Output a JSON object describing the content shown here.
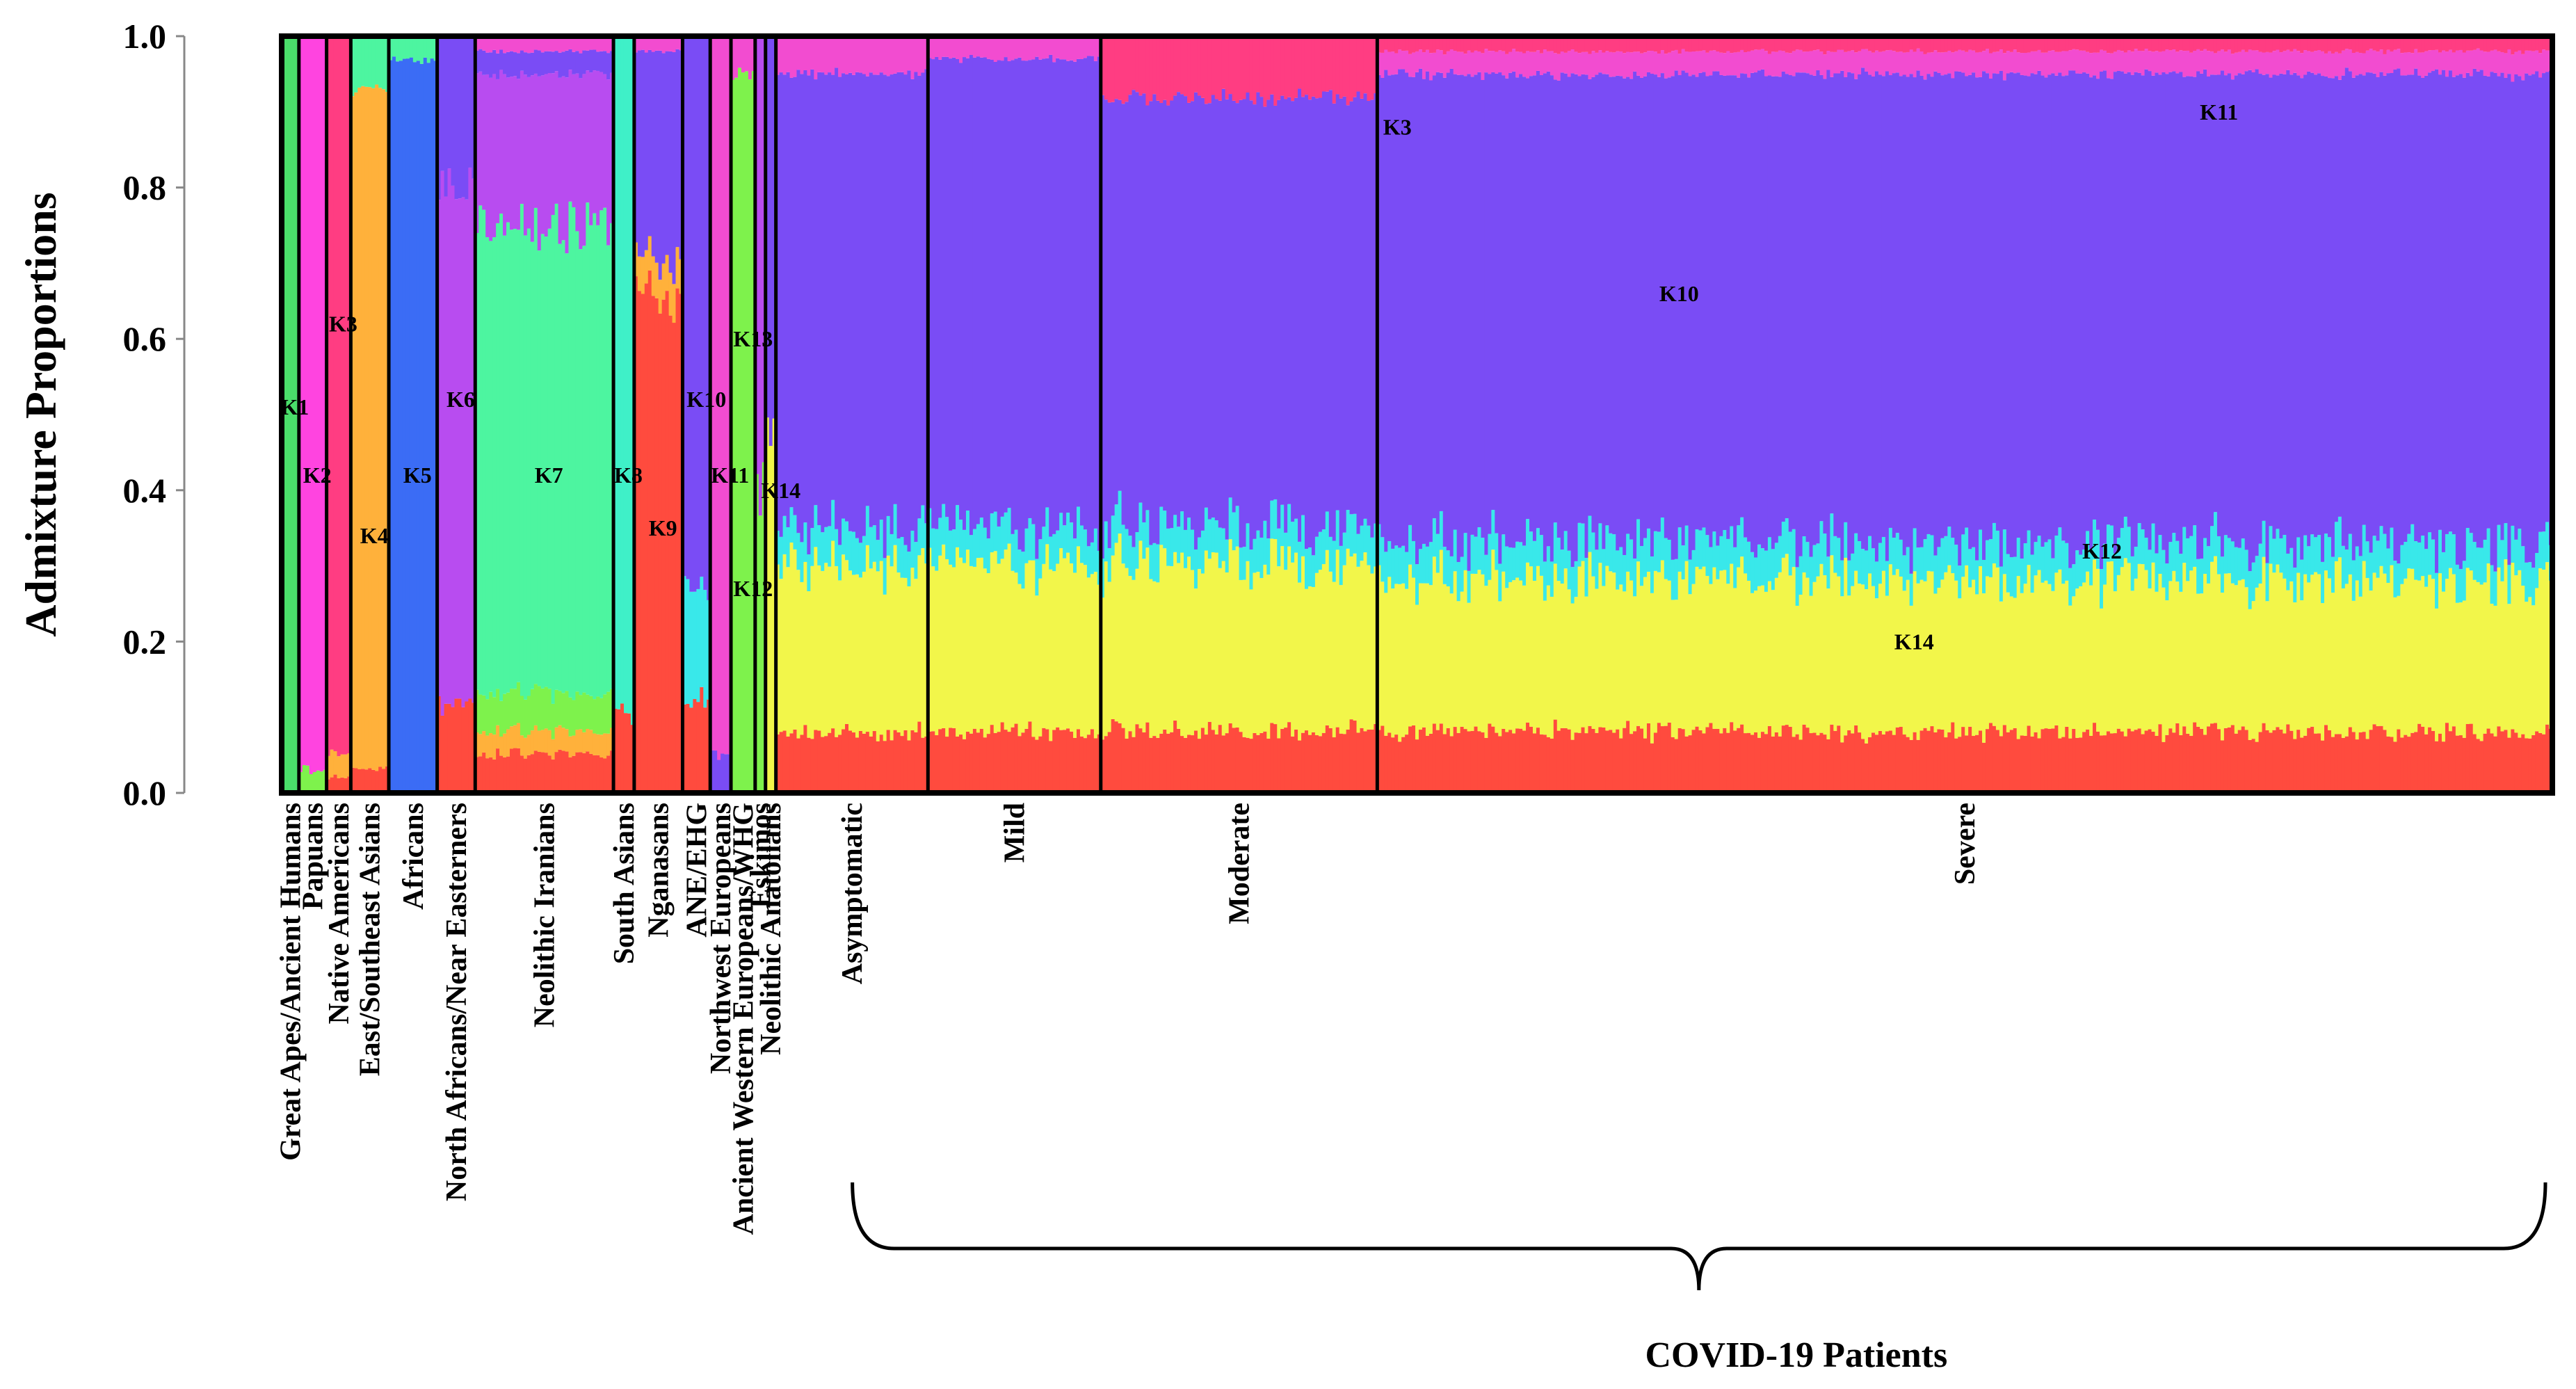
{
  "chart_data": {
    "type": "stacked-bar",
    "ylabel": "Admixture Proportions",
    "ylim": [
      0.0,
      1.0
    ],
    "yticks": [
      "0.0",
      "0.2",
      "0.4",
      "0.6",
      "0.8",
      "1.0"
    ],
    "components": [
      {
        "name": "K1",
        "color": "#4ade6a"
      },
      {
        "name": "K2",
        "color": "#ff44e0"
      },
      {
        "name": "K3",
        "color": "#ff3d82"
      },
      {
        "name": "K4",
        "color": "#ffb13b"
      },
      {
        "name": "K5",
        "color": "#3b6cf5"
      },
      {
        "name": "K6",
        "color": "#b84cf0"
      },
      {
        "name": "K7",
        "color": "#4df5a0"
      },
      {
        "name": "K8",
        "color": "#3ff0c8"
      },
      {
        "name": "K9",
        "color": "#ff4b3e"
      },
      {
        "name": "K10",
        "color": "#7a4cf5"
      },
      {
        "name": "K11",
        "color": "#f24cd0"
      },
      {
        "name": "K12",
        "color": "#39e8ea"
      },
      {
        "name": "K13",
        "color": "#7ef24c"
      },
      {
        "name": "K14",
        "color": "#f2f64a"
      }
    ],
    "groups": [
      {
        "name": "Great Apes/Ancient Humans",
        "n": 5,
        "composition": {
          "K1": 1.0
        }
      },
      {
        "name": "Papuans",
        "n": 8,
        "composition": {
          "K2": 0.97,
          "K13": 0.03
        }
      },
      {
        "name": "Native Americans",
        "n": 7,
        "composition": {
          "K3": 0.95,
          "K4": 0.03,
          "K9": 0.02
        }
      },
      {
        "name": "East/Southeast Asians",
        "n": 11,
        "composition": {
          "K4": 0.9,
          "K7": 0.07,
          "K9": 0.03
        }
      },
      {
        "name": "Africans",
        "n": 14,
        "composition": {
          "K5": 0.97,
          "K7": 0.03
        }
      },
      {
        "name": "North Africans/Near Easterners",
        "n": 11,
        "composition": {
          "K9": 0.12,
          "K6": 0.68,
          "K10": 0.2
        }
      },
      {
        "name": "Neolithic Iranians",
        "n": 40,
        "composition": {
          "K9": 0.05,
          "K4": 0.03,
          "K13": 0.05,
          "K7": 0.62,
          "K6": 0.2,
          "K10": 0.03,
          "K11": 0.02
        }
      },
      {
        "name": "South Asians",
        "n": 6,
        "composition": {
          "K9": 0.1,
          "K8": 0.9
        }
      },
      {
        "name": "Nganasans",
        "n": 14,
        "composition": {
          "K9": 0.65,
          "K4": 0.05,
          "K10": 0.28,
          "K11": 0.02
        }
      },
      {
        "name": "ANE/EHG",
        "n": 8,
        "composition": {
          "K9": 0.12,
          "K12": 0.15,
          "K10": 0.73
        }
      },
      {
        "name": "Northwest Europeans",
        "n": 6,
        "composition": {
          "K11": 0.95,
          "K10": 0.05
        }
      },
      {
        "name": "Ancient Western Europeans/WHG",
        "n": 7,
        "composition": {
          "K13": 0.95,
          "K11": 0.05
        }
      },
      {
        "name": "Eskimos",
        "n": 3,
        "composition": {
          "K6": 0.6,
          "K13": 0.4
        }
      },
      {
        "name": "Neolithic Anatolians",
        "n": 3,
        "composition": {
          "K14": 0.5,
          "K10": 0.5
        }
      },
      {
        "name": "Asymptomatic",
        "n": 44,
        "composition": {
          "K9": 0.08,
          "K14": 0.22,
          "K12": 0.05,
          "K10": 0.6,
          "K11": 0.05
        }
      },
      {
        "name": "Mild",
        "n": 50,
        "composition": {
          "K9": 0.08,
          "K14": 0.22,
          "K12": 0.05,
          "K10": 0.62,
          "K11": 0.03
        }
      },
      {
        "name": "Moderate",
        "n": 80,
        "composition": {
          "K9": 0.08,
          "K14": 0.22,
          "K12": 0.05,
          "K10": 0.57,
          "K3": 0.08
        }
      },
      {
        "name": "Severe",
        "n": 340,
        "composition": {
          "K9": 0.08,
          "K14": 0.2,
          "K12": 0.05,
          "K10": 0.62,
          "K3": 0.02,
          "K11": 0.03
        }
      }
    ],
    "component_labels": [
      {
        "text": "K1",
        "group": "Great Apes/Ancient Humans",
        "y": 0.51
      },
      {
        "text": "K2",
        "group": "Papuans",
        "y": 0.42
      },
      {
        "text": "K3",
        "group": "Native Americans",
        "y": 0.62
      },
      {
        "text": "K4",
        "group": "East/Southeast Asians",
        "y": 0.34
      },
      {
        "text": "K5",
        "group": "Africans",
        "y": 0.42
      },
      {
        "text": "K6",
        "group": "North Africans/Near Easterners",
        "y": 0.52
      },
      {
        "text": "K7",
        "group": "Neolithic Iranians",
        "y": 0.42
      },
      {
        "text": "K8",
        "group": "South Asians",
        "y": 0.42
      },
      {
        "text": "K9",
        "group": "Nganasans",
        "y": 0.35
      },
      {
        "text": "K10",
        "group": "ANE/EHG",
        "y": 0.52
      },
      {
        "text": "K11",
        "group": "Northwest Europeans",
        "y": 0.42
      },
      {
        "text": "K12",
        "group": "Ancient Western Europeans/WHG",
        "y": 0.27
      },
      {
        "text": "K13",
        "group": "Ancient Western Europeans/WHG",
        "y": 0.6
      },
      {
        "text": "K14",
        "group": "Neolithic Anatolians",
        "y": 0.4
      },
      {
        "text": "K3",
        "group": "Severe",
        "y": 0.88,
        "offset": 0.005
      },
      {
        "text": "K10",
        "group": "Severe",
        "y": 0.66,
        "offset": 0.24
      },
      {
        "text": "K11",
        "group": "Severe",
        "y": 0.9,
        "offset": 0.7
      },
      {
        "text": "K12",
        "group": "Severe",
        "y": 0.32,
        "offset": 0.6
      },
      {
        "text": "K14",
        "group": "Severe",
        "y": 0.2,
        "offset": 0.44
      }
    ],
    "bracket_label": "COVID-19 Patients",
    "bracket_span": [
      "Asymptomatic",
      "Severe"
    ]
  }
}
